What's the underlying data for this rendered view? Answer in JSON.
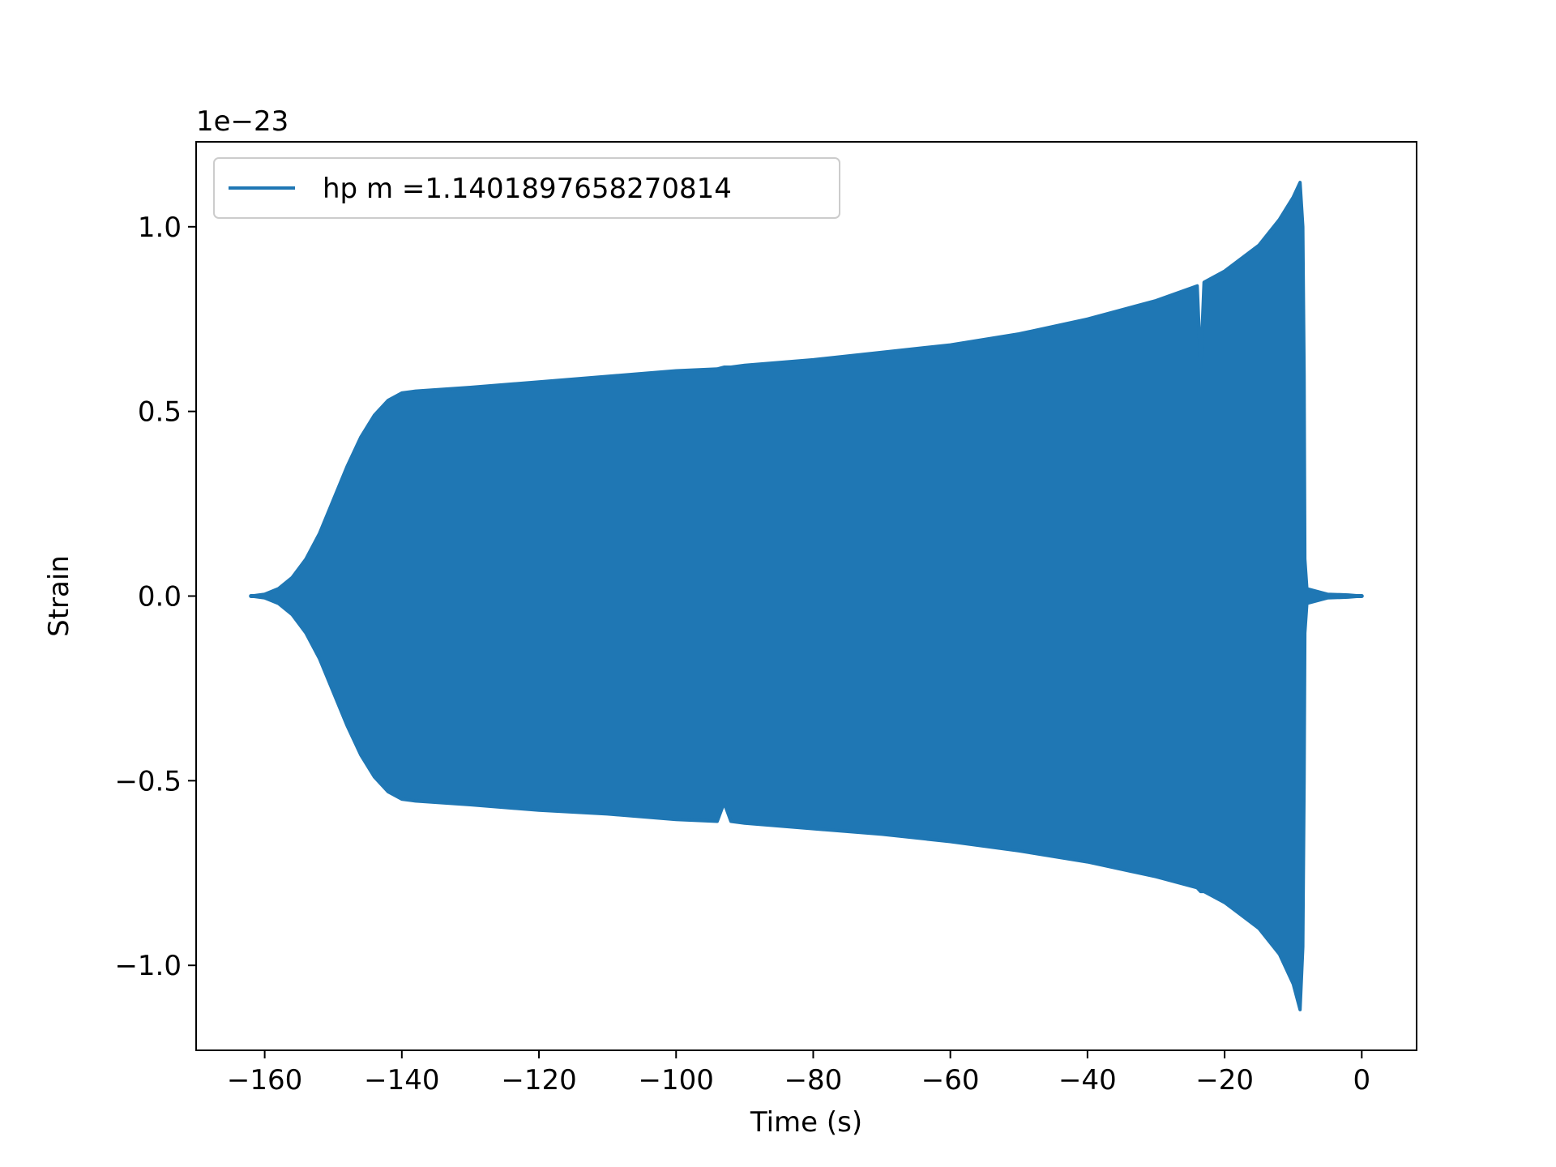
{
  "chart_data": {
    "type": "area",
    "title": "",
    "xlabel": "Time (s)",
    "ylabel": "Strain",
    "offset_label": "1e−23",
    "xlim": [
      -170,
      8
    ],
    "ylim": [
      -1.23,
      1.23
    ],
    "x_ticks": [
      -160,
      -140,
      -120,
      -100,
      -80,
      -60,
      -40,
      -20,
      0
    ],
    "x_tick_labels": [
      "−160",
      "−140",
      "−120",
      "−100",
      "−80",
      "−60",
      "−40",
      "−20",
      "0"
    ],
    "y_ticks": [
      1.0,
      0.5,
      0.0,
      -0.5,
      -1.0
    ],
    "y_tick_labels": [
      "1.0",
      "0.5",
      "0.0",
      "−0.5",
      "−1.0"
    ],
    "grid": false,
    "legend_position": "top-left",
    "series": [
      {
        "name": "hp m =1.1401897658270814",
        "color": "#1f77b4",
        "description_units": "strain amplitude × 1e-23",
        "envelope": {
          "x": [
            -162,
            -160,
            -158,
            -156,
            -154,
            -152,
            -150,
            -148,
            -146,
            -144,
            -142,
            -140,
            -138,
            -130,
            -120,
            -110,
            -100,
            -94,
            -93,
            -92,
            -90,
            -80,
            -70,
            -60,
            -50,
            -40,
            -30,
            -24,
            -23.5,
            -23,
            -20,
            -15,
            -12,
            -10,
            -9,
            -8.6,
            -8.4,
            -8.3,
            -8,
            -5,
            -2,
            0
          ],
          "upper": [
            0.0,
            0.005,
            0.02,
            0.05,
            0.1,
            0.17,
            0.26,
            0.35,
            0.43,
            0.49,
            0.53,
            0.55,
            0.555,
            0.565,
            0.58,
            0.595,
            0.61,
            0.615,
            0.62,
            0.62,
            0.625,
            0.64,
            0.66,
            0.68,
            0.71,
            0.75,
            0.8,
            0.84,
            0.62,
            0.85,
            0.88,
            0.95,
            1.02,
            1.08,
            1.12,
            1.0,
            0.6,
            0.1,
            0.02,
            0.005,
            0.003,
            0.0
          ],
          "lower": [
            0.0,
            -0.005,
            -0.02,
            -0.05,
            -0.1,
            -0.17,
            -0.26,
            -0.35,
            -0.43,
            -0.49,
            -0.53,
            -0.55,
            -0.555,
            -0.565,
            -0.58,
            -0.59,
            -0.605,
            -0.61,
            -0.56,
            -0.61,
            -0.615,
            -0.63,
            -0.645,
            -0.665,
            -0.69,
            -0.72,
            -0.76,
            -0.79,
            -0.8,
            -0.8,
            -0.83,
            -0.9,
            -0.97,
            -1.05,
            -1.12,
            -0.95,
            -0.5,
            -0.1,
            -0.02,
            -0.005,
            -0.003,
            0.0
          ]
        }
      }
    ]
  }
}
